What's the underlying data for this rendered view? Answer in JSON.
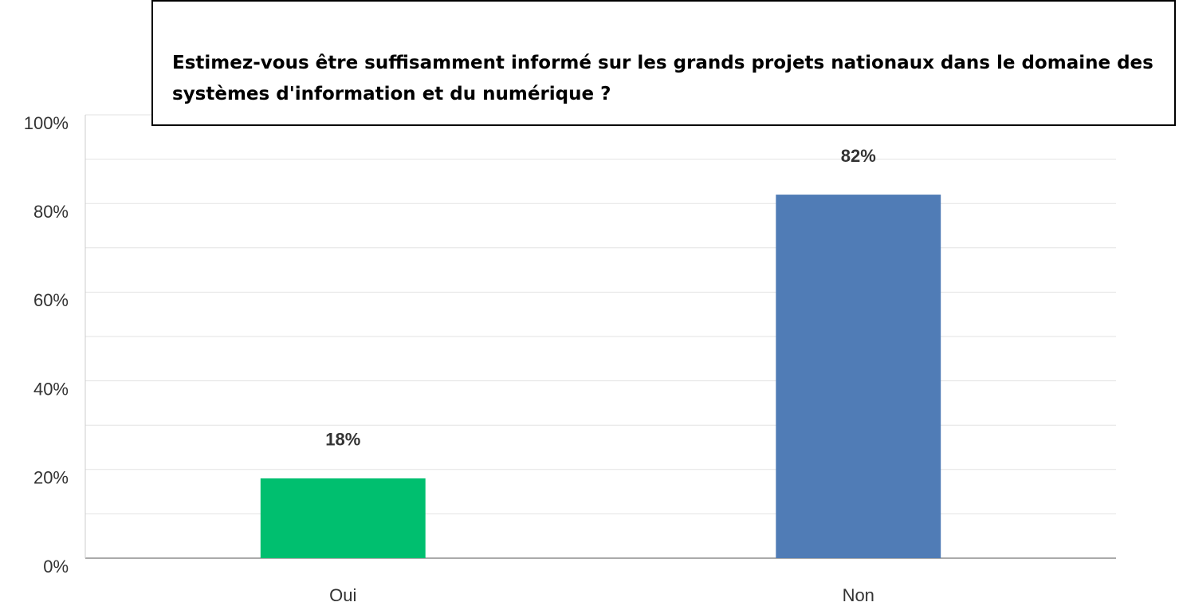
{
  "chart_data": {
    "type": "bar",
    "title": "Estimez-vous être suffisamment informé sur les grands projets nationaux dans le domaine des systèmes d'information et du numérique ?",
    "categories": [
      "Oui",
      "Non"
    ],
    "values": [
      18,
      82
    ],
    "value_labels": [
      "18%",
      "82%"
    ],
    "colors": [
      "#00bf6f",
      "#507cb6"
    ],
    "ylim": [
      0,
      100
    ],
    "yticks": [
      {
        "value": 0,
        "label": "0%"
      },
      {
        "value": 20,
        "label": "20%"
      },
      {
        "value": 40,
        "label": "40%"
      },
      {
        "value": 60,
        "label": "60%"
      },
      {
        "value": 80,
        "label": "80%"
      },
      {
        "value": 100,
        "label": "100%"
      }
    ],
    "minor_yticks": [
      10,
      30,
      50,
      70,
      90
    ],
    "grid": true
  }
}
